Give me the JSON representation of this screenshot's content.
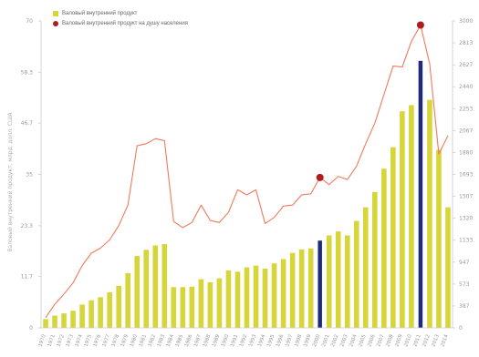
{
  "chart_data": {
    "type": "bar",
    "ylabel": "Валовый внутренний продукт, млрд. долл. США",
    "left_axis": {
      "ticks": [
        "0",
        "11.7",
        "23.3",
        "35",
        "46.7",
        "58.3",
        "70"
      ],
      "ylim": [
        0,
        70
      ]
    },
    "right_axis": {
      "ticks": [
        "0",
        "387",
        "573",
        "947",
        "1133",
        "1320",
        "1507",
        "1693",
        "1880",
        "2067",
        "2253",
        "2440",
        "2627",
        "2813",
        "3000"
      ],
      "ylim": [
        0,
        3000
      ]
    },
    "categories": [
      "1970",
      "1971",
      "1972",
      "1973",
      "1974",
      "1975",
      "1976",
      "1977",
      "1978",
      "1979",
      "1980",
      "1981",
      "1982",
      "1983",
      "1984",
      "1985",
      "1986",
      "1987",
      "1988",
      "1989",
      "1990",
      "1991",
      "1992",
      "1993",
      "1994",
      "1995",
      "1996",
      "1997",
      "1998",
      "1999",
      "2000",
      "2001",
      "2002",
      "2003",
      "2004",
      "2005",
      "2006",
      "2007",
      "2008",
      "2009",
      "2010",
      "2011",
      "2012",
      "2013",
      "2014"
    ],
    "x_tick_labels": [
      "1970",
      "1971",
      "1972",
      "1973",
      "1974",
      "1975",
      "1976",
      "1977",
      "1978",
      "1979",
      "1980",
      "1981",
      "1982",
      "1983",
      "1984",
      "1985",
      "1986",
      "1987",
      "1988",
      "1989",
      "1990",
      "1991",
      "1992",
      "1993",
      "1994",
      "1995",
      "1996",
      "1997",
      "1998",
      "1999",
      "2000",
      "2001",
      "2002",
      "2003",
      "2004",
      "2005",
      "2006",
      "2007",
      "2008",
      "2009",
      "2010",
      "2011",
      "2012",
      "2013",
      "2014"
    ],
    "series": [
      {
        "name": "Валовый внутренний продукт",
        "axis": "left",
        "color": "#d6d63a",
        "values": [
          2,
          2.8,
          3.3,
          3.9,
          5.3,
          6.3,
          7,
          8.1,
          9.6,
          12.5,
          16.4,
          17.8,
          18.8,
          19.1,
          9.3,
          9.3,
          9.4,
          11.1,
          10.4,
          11.3,
          13.1,
          12.8,
          13.8,
          14.2,
          13.5,
          14.7,
          15.7,
          17.1,
          17.9,
          18.1,
          19.9,
          21.1,
          22,
          21.1,
          24.4,
          27.5,
          31,
          36.3,
          41.2,
          49.4,
          50.8,
          60.9,
          52,
          40.6,
          27.5
        ],
        "highlight_indices": [
          30,
          41
        ],
        "highlight_color": "#1f2a78"
      },
      {
        "name": "Валовый внутренний продукт на душу населения",
        "axis": "right",
        "color": "#f07a5a",
        "values": [
          100,
          230,
          330,
          440,
          610,
          730,
          780,
          860,
          1000,
          1200,
          1780,
          1800,
          1850,
          1830,
          1040,
          980,
          1030,
          1200,
          1050,
          1030,
          1130,
          1350,
          1300,
          1350,
          1020,
          1080,
          1190,
          1200,
          1300,
          1310,
          1470,
          1400,
          1480,
          1450,
          1580,
          1800,
          2000,
          2280,
          2560,
          2550,
          2800,
          2960,
          2580,
          1700,
          1880
        ],
        "highlight_indices": [
          30,
          41
        ],
        "highlight_color": "#b01c1c"
      }
    ],
    "grid": false,
    "legend": "top-left"
  }
}
